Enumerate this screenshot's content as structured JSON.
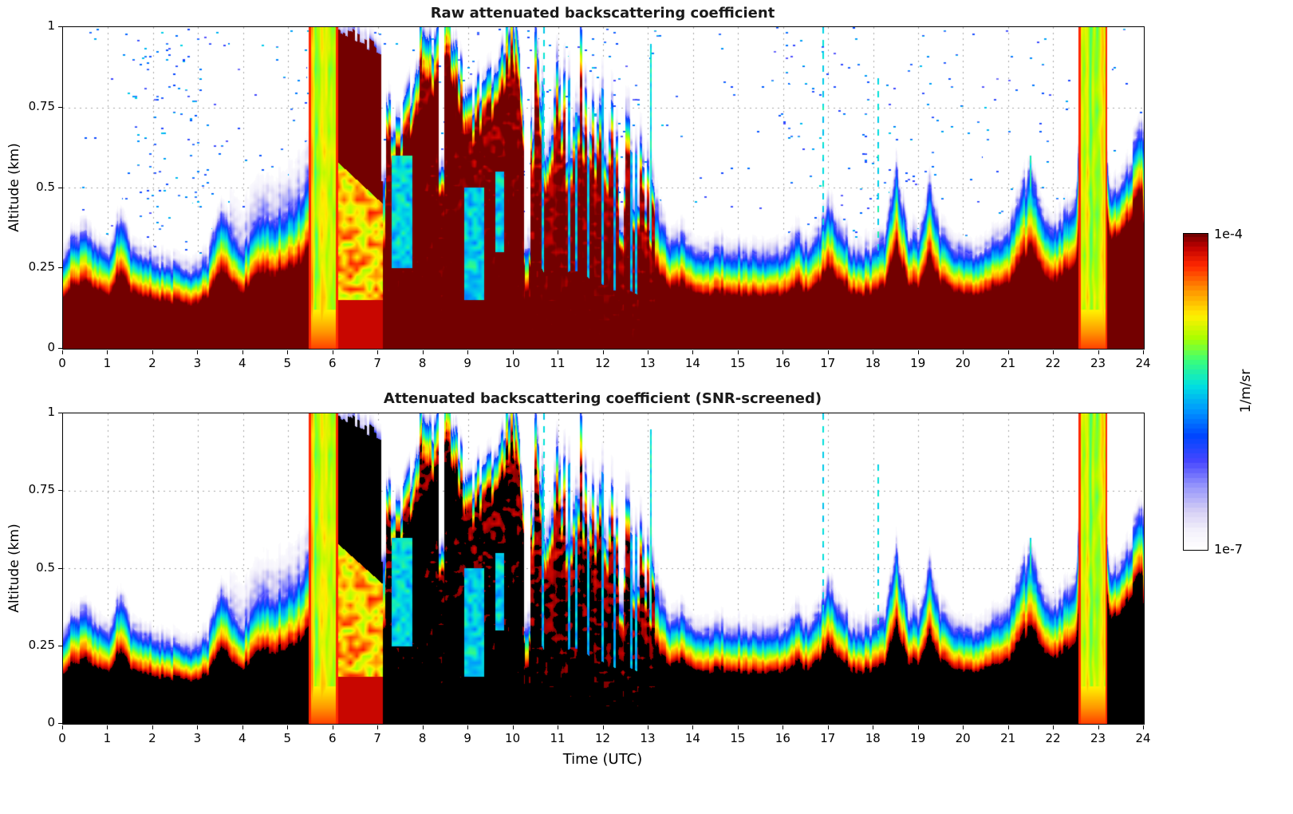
{
  "figure": {
    "panels": [
      {
        "title": "Raw attenuated backscattering coefficient",
        "ylabel": "Altitude (km)"
      },
      {
        "title": "Attenuated backscattering coefficient (SNR-screened)",
        "ylabel": "Altitude (km)"
      }
    ],
    "xlabel": "Time (UTC)",
    "x_tick_labels": [
      "0",
      "1",
      "2",
      "3",
      "4",
      "5",
      "6",
      "7",
      "8",
      "9",
      "10",
      "11",
      "12",
      "13",
      "14",
      "15",
      "16",
      "17",
      "18",
      "19",
      "20",
      "21",
      "22",
      "23",
      "24"
    ],
    "y_tick_labels": [
      "0",
      "0.25",
      "0.5",
      "0.75",
      "1"
    ],
    "colorbar": {
      "top_label": "1e-4",
      "bottom_label": "1e-7",
      "unit": "1/m/sr"
    }
  },
  "chart_data": {
    "type": "heatmap",
    "title": "Attenuated backscattering coefficient time-height cross sections (raw and SNR-screened)",
    "xlabel": "Time (UTC)",
    "ylabel": "Altitude (km)",
    "unit": "1/m/sr",
    "x_range": [
      0,
      24
    ],
    "y_range": [
      0,
      1
    ],
    "x_ticks": [
      0,
      1,
      2,
      3,
      4,
      5,
      6,
      7,
      8,
      9,
      10,
      11,
      12,
      13,
      14,
      15,
      16,
      17,
      18,
      19,
      20,
      21,
      22,
      23,
      24
    ],
    "y_ticks": [
      0,
      0.25,
      0.5,
      0.75,
      1
    ],
    "value_scale": "log10",
    "value_min": 1e-07,
    "value_max": 0.0001,
    "panels": [
      {
        "title": "Raw attenuated backscattering coefficient",
        "screened": false,
        "noise_speckle": true
      },
      {
        "title": "Attenuated backscattering coefficient (SNR-screened)",
        "screened": true,
        "noise_speckle": false
      }
    ],
    "sat_threshold": 0.995,
    "colormap_stops": [
      {
        "v": 0.0,
        "rgb": [
          255,
          255,
          255
        ]
      },
      {
        "v": 0.06,
        "rgb": [
          244,
          242,
          252
        ]
      },
      {
        "v": 0.12,
        "rgb": [
          214,
          208,
          245
        ]
      },
      {
        "v": 0.2,
        "rgb": [
          150,
          150,
          252
        ]
      },
      {
        "v": 0.28,
        "rgb": [
          70,
          70,
          255
        ]
      },
      {
        "v": 0.36,
        "rgb": [
          0,
          70,
          255
        ]
      },
      {
        "v": 0.44,
        "rgb": [
          0,
          150,
          255
        ]
      },
      {
        "v": 0.52,
        "rgb": [
          0,
          225,
          225
        ]
      },
      {
        "v": 0.6,
        "rgb": [
          60,
          255,
          120
        ]
      },
      {
        "v": 0.67,
        "rgb": [
          170,
          255,
          0
        ]
      },
      {
        "v": 0.74,
        "rgb": [
          255,
          240,
          0
        ]
      },
      {
        "v": 0.82,
        "rgb": [
          255,
          150,
          0
        ]
      },
      {
        "v": 0.9,
        "rgb": [
          255,
          40,
          0
        ]
      },
      {
        "v": 0.96,
        "rgb": [
          190,
          0,
          0
        ]
      },
      {
        "v": 1.0,
        "rgb": [
          115,
          0,
          0
        ]
      }
    ],
    "boundary_layer_top_km": {
      "t0": 0,
      "dt": 0.25,
      "h": [
        0.3,
        0.34,
        0.36,
        0.31,
        0.28,
        0.4,
        0.31,
        0.28,
        0.27,
        0.26,
        0.25,
        0.24,
        0.25,
        0.29,
        0.44,
        0.34,
        0.31,
        0.38,
        0.43,
        0.41,
        0.43,
        0.46,
        0.55,
        0.75,
        0.95,
        1.0,
        1.0,
        0.95,
        0.85,
        0.72,
        0.7,
        0.82,
        1.0,
        0.92,
        1.0,
        0.86,
        0.76,
        0.8,
        0.86,
        0.92,
        1.0,
        0.72,
        0.95,
        0.72,
        0.74,
        0.8,
        0.8,
        0.7,
        0.66,
        0.6,
        0.62,
        0.56,
        0.52,
        0.4,
        0.33,
        0.35,
        0.3,
        0.29,
        0.31,
        0.29,
        0.3,
        0.29,
        0.28,
        0.28,
        0.29,
        0.35,
        0.31,
        0.34,
        0.45,
        0.36,
        0.31,
        0.29,
        0.31,
        0.33,
        0.55,
        0.36,
        0.33,
        0.5,
        0.36,
        0.31,
        0.3,
        0.29,
        0.31,
        0.33,
        0.36,
        0.46,
        0.55,
        0.41,
        0.36,
        0.41,
        0.48,
        1.0,
        1.0,
        0.46,
        0.52,
        0.6,
        0.7
      ]
    },
    "events": [
      {
        "t0": 5.45,
        "t1": 6.1,
        "kind": "rain",
        "top": 1.0,
        "label": "precipitation shaft (yellow-green column)"
      },
      {
        "t0": 6.1,
        "t1": 7.1,
        "kind": "elevated_blob",
        "base0": 0.58,
        "base1": 0.45,
        "top0": 1.0,
        "top1": 0.92,
        "label": "dense elevated cloud deck (dark red / black)"
      },
      {
        "t0": 7.15,
        "t1": 10.25,
        "kind": "convective",
        "label": "deep plumes reaching 1 km, peaks at 8.0, 8.5, 10.0 UTC"
      },
      {
        "t0": 10.35,
        "t1": 13.15,
        "kind": "spiky",
        "label": "broken plume towers decaying from 0.95 to 0.5 km"
      },
      {
        "t0": 22.55,
        "t1": 23.2,
        "kind": "rain",
        "top": 1.0,
        "label": "precipitation shaft (yellow-green column)"
      },
      {
        "t0": 23.2,
        "t1": 24.0,
        "kind": "rising_layer",
        "label": "dense layer deepening from 0.45 to 0.7 km"
      }
    ],
    "cool_patches": [
      {
        "t0": 7.3,
        "t1": 7.75,
        "a0": 0.25,
        "a1": 0.6
      },
      {
        "t0": 8.9,
        "t1": 9.35,
        "a0": 0.15,
        "a1": 0.5
      },
      {
        "t0": 9.6,
        "t1": 9.8,
        "a0": 0.3,
        "a1": 0.55
      }
    ],
    "gaps": [
      {
        "t": 7.12,
        "to": 0.5,
        "w": 0.1
      },
      {
        "t": 8.4,
        "to": 0.55,
        "w": 0.12
      },
      {
        "t": 10.3,
        "to": 0.3,
        "w": 0.14
      },
      {
        "t": 12.4,
        "to": 0.35,
        "w": 0.1
      }
    ],
    "streaks": [
      {
        "t": 10.68,
        "top": 1.0,
        "dashed": true
      },
      {
        "t": 13.05,
        "top": 0.95,
        "dashed": false
      },
      {
        "t": 16.88,
        "top": 1.0,
        "dashed": true
      },
      {
        "t": 18.1,
        "top": 0.85,
        "dashed": true
      },
      {
        "t": 21.5,
        "top": 0.6,
        "dashed": false
      }
    ],
    "fade_windows": [
      {
        "t0": 0.0,
        "t1": 3.7,
        "w": 0.07
      },
      {
        "t0": 3.7,
        "t1": 5.45,
        "w": 0.2
      },
      {
        "t0": 10.3,
        "t1": 13.3,
        "w": 0.13
      },
      {
        "t0": 13.3,
        "t1": 24.0,
        "w": 0.08
      }
    ],
    "speckle_windows": [
      {
        "t0": 0.2,
        "t1": 1.3,
        "d": 0.1
      },
      {
        "t0": 1.3,
        "t1": 3.7,
        "d": 0.45
      },
      {
        "t0": 3.7,
        "t1": 5.4,
        "d": 0.15
      },
      {
        "t0": 5.4,
        "t1": 6.6,
        "d": 0.55
      },
      {
        "t0": 6.6,
        "t1": 10.3,
        "d": 0.25
      },
      {
        "t0": 10.3,
        "t1": 13.4,
        "d": 0.4
      },
      {
        "t0": 13.4,
        "t1": 16.0,
        "d": 0.08
      },
      {
        "t0": 16.0,
        "t1": 19.5,
        "d": 0.3
      },
      {
        "t0": 19.5,
        "t1": 22.4,
        "d": 0.15
      },
      {
        "t0": 23.3,
        "t1": 24.0,
        "d": 0.1
      }
    ]
  }
}
